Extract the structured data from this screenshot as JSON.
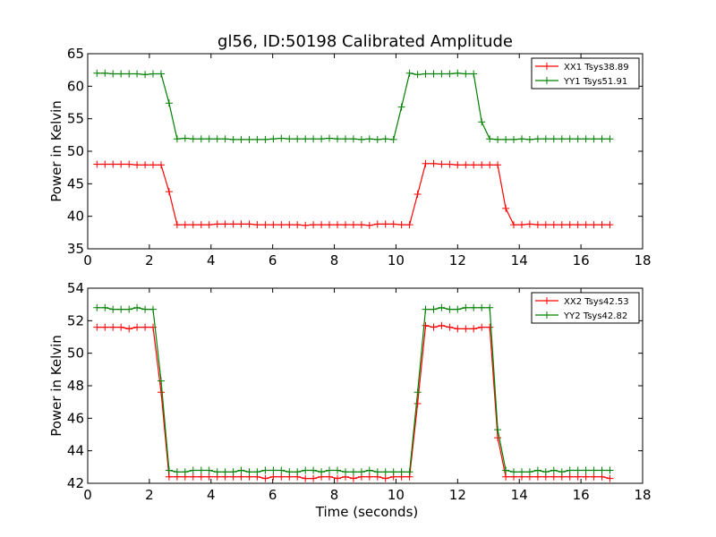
{
  "chart_data": [
    {
      "type": "line",
      "title": "gl56, ID:50198 Calibrated Amplitude",
      "xlabel": "",
      "ylabel": "Power in Kelvin",
      "xlim": [
        0,
        18
      ],
      "ylim": [
        35,
        65
      ],
      "xticks": [
        0,
        2,
        4,
        6,
        8,
        10,
        12,
        14,
        16,
        18
      ],
      "yticks": [
        35,
        40,
        45,
        50,
        55,
        60,
        65
      ],
      "legend_position": "top-right",
      "x": [
        0.3,
        0.56,
        0.82,
        1.08,
        1.34,
        1.6,
        1.86,
        2.12,
        2.38,
        2.64,
        2.9,
        3.16,
        3.42,
        3.68,
        3.94,
        4.2,
        4.46,
        4.72,
        4.98,
        5.24,
        5.5,
        5.76,
        6.02,
        6.28,
        6.54,
        6.8,
        7.06,
        7.32,
        7.58,
        7.84,
        8.1,
        8.36,
        8.62,
        8.88,
        9.14,
        9.4,
        9.66,
        9.92,
        10.18,
        10.44,
        10.7,
        10.96,
        11.22,
        11.48,
        11.74,
        12.0,
        12.26,
        12.52,
        12.78,
        13.04,
        13.3,
        13.56,
        13.82,
        14.08,
        14.34,
        14.6,
        14.86,
        15.12,
        15.38,
        15.64,
        15.9,
        16.16,
        16.42,
        16.68,
        16.94
      ],
      "series": [
        {
          "name": "XX1 Tsys38.89",
          "color": "#ff0000",
          "values": [
            48.0,
            48.0,
            48.0,
            48.0,
            48.0,
            47.9,
            47.9,
            47.9,
            47.9,
            43.8,
            38.7,
            38.7,
            38.7,
            38.7,
            38.7,
            38.8,
            38.8,
            38.8,
            38.8,
            38.8,
            38.7,
            38.7,
            38.7,
            38.7,
            38.7,
            38.7,
            38.6,
            38.7,
            38.7,
            38.7,
            38.7,
            38.7,
            38.7,
            38.7,
            38.6,
            38.8,
            38.8,
            38.8,
            38.7,
            38.7,
            43.4,
            48.1,
            48.1,
            48.0,
            48.0,
            47.9,
            47.9,
            47.9,
            47.9,
            47.9,
            47.9,
            41.2,
            38.7,
            38.7,
            38.8,
            38.7,
            38.7,
            38.7,
            38.7,
            38.7,
            38.7,
            38.7,
            38.7,
            38.7,
            38.7
          ]
        },
        {
          "name": "YY1 Tsys51.91",
          "color": "#008000",
          "values": [
            62.0,
            62.0,
            61.9,
            61.9,
            61.9,
            61.9,
            61.8,
            61.9,
            61.9,
            57.4,
            51.9,
            52.0,
            51.9,
            51.9,
            51.9,
            51.9,
            51.9,
            51.8,
            51.8,
            51.8,
            51.8,
            51.8,
            51.9,
            52.0,
            51.9,
            51.9,
            51.9,
            51.9,
            51.9,
            52.0,
            51.9,
            51.9,
            51.9,
            51.8,
            51.9,
            51.8,
            51.9,
            51.8,
            56.8,
            62.0,
            61.8,
            61.9,
            61.9,
            61.9,
            61.9,
            62.0,
            61.9,
            61.9,
            54.5,
            51.9,
            51.8,
            51.8,
            51.8,
            51.9,
            51.8,
            51.9,
            51.9,
            51.9,
            51.9,
            51.9,
            51.9,
            51.9,
            51.9,
            51.9,
            51.9
          ]
        }
      ]
    },
    {
      "type": "line",
      "title": "",
      "xlabel": "Time (seconds)",
      "ylabel": "Power in Kelvin",
      "xlim": [
        0,
        18
      ],
      "ylim": [
        42,
        54
      ],
      "xticks": [
        0,
        2,
        4,
        6,
        8,
        10,
        12,
        14,
        16,
        18
      ],
      "yticks": [
        42,
        44,
        46,
        48,
        50,
        52,
        54
      ],
      "legend_position": "top-right",
      "x": [
        0.3,
        0.56,
        0.82,
        1.08,
        1.34,
        1.6,
        1.86,
        2.12,
        2.38,
        2.64,
        2.9,
        3.16,
        3.42,
        3.68,
        3.94,
        4.2,
        4.46,
        4.72,
        4.98,
        5.24,
        5.5,
        5.76,
        6.02,
        6.28,
        6.54,
        6.8,
        7.06,
        7.32,
        7.58,
        7.84,
        8.1,
        8.36,
        8.62,
        8.88,
        9.14,
        9.4,
        9.66,
        9.92,
        10.18,
        10.44,
        10.7,
        10.96,
        11.22,
        11.48,
        11.74,
        12.0,
        12.26,
        12.52,
        12.78,
        13.04,
        13.3,
        13.56,
        13.82,
        14.08,
        14.34,
        14.6,
        14.86,
        15.12,
        15.38,
        15.64,
        15.9,
        16.16,
        16.42,
        16.68,
        16.94
      ],
      "series": [
        {
          "name": "XX2 Tsys42.53",
          "color": "#ff0000",
          "values": [
            51.6,
            51.6,
            51.6,
            51.6,
            51.5,
            51.6,
            51.6,
            51.6,
            47.6,
            42.4,
            42.4,
            42.4,
            42.4,
            42.4,
            42.4,
            42.4,
            42.4,
            42.4,
            42.4,
            42.4,
            42.4,
            42.3,
            42.4,
            42.4,
            42.4,
            42.4,
            42.3,
            42.3,
            42.4,
            42.4,
            42.3,
            42.4,
            42.3,
            42.4,
            42.4,
            42.4,
            42.3,
            42.4,
            42.4,
            42.4,
            46.9,
            51.7,
            51.6,
            51.7,
            51.6,
            51.5,
            51.5,
            51.5,
            51.6,
            51.6,
            44.8,
            42.4,
            42.4,
            42.4,
            42.4,
            42.4,
            42.4,
            42.4,
            42.4,
            42.4,
            42.4,
            42.4,
            42.4,
            42.4,
            42.3
          ]
        },
        {
          "name": "YY2 Tsys42.82",
          "color": "#008000",
          "values": [
            52.8,
            52.8,
            52.7,
            52.7,
            52.7,
            52.8,
            52.7,
            52.7,
            48.3,
            42.8,
            42.7,
            42.7,
            42.8,
            42.8,
            42.8,
            42.7,
            42.7,
            42.7,
            42.8,
            42.7,
            42.7,
            42.8,
            42.8,
            42.8,
            42.7,
            42.7,
            42.8,
            42.8,
            42.7,
            42.8,
            42.8,
            42.7,
            42.7,
            42.7,
            42.8,
            42.7,
            42.7,
            42.7,
            42.7,
            42.7,
            47.6,
            52.7,
            52.7,
            52.8,
            52.7,
            52.7,
            52.8,
            52.8,
            52.8,
            52.8,
            45.3,
            42.8,
            42.7,
            42.7,
            42.7,
            42.8,
            42.7,
            42.8,
            42.7,
            42.8,
            42.8,
            42.8,
            42.8,
            42.8,
            42.8
          ]
        }
      ]
    }
  ]
}
